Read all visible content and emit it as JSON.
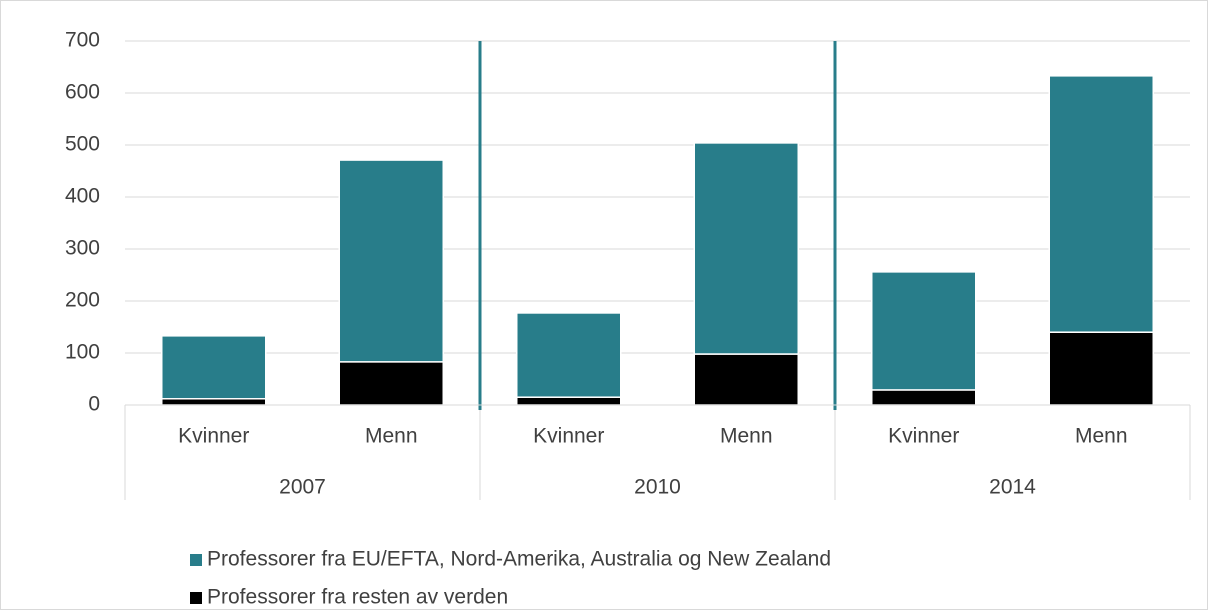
{
  "chart_data": {
    "type": "bar",
    "stacked": true,
    "categories": [
      "Kvinner",
      "Menn",
      "Kvinner",
      "Menn",
      "Kvinner",
      "Menn"
    ],
    "groups": [
      "2007",
      "2010",
      "2014"
    ],
    "series": [
      {
        "name": "Professorer fra EU/EFTA, Nord-Amerika, Australia og New Zealand",
        "color": "#287d8a",
        "values": [
          121,
          388,
          162,
          406,
          227,
          493
        ]
      },
      {
        "name": "Professorer fra resten av verden",
        "color": "#000000",
        "values": [
          12,
          83,
          15,
          98,
          29,
          140
        ]
      }
    ],
    "ylim": [
      0,
      700
    ],
    "yticks": [
      0,
      100,
      200,
      300,
      400,
      500,
      600,
      700
    ],
    "grid": true,
    "legend": "bottom"
  }
}
